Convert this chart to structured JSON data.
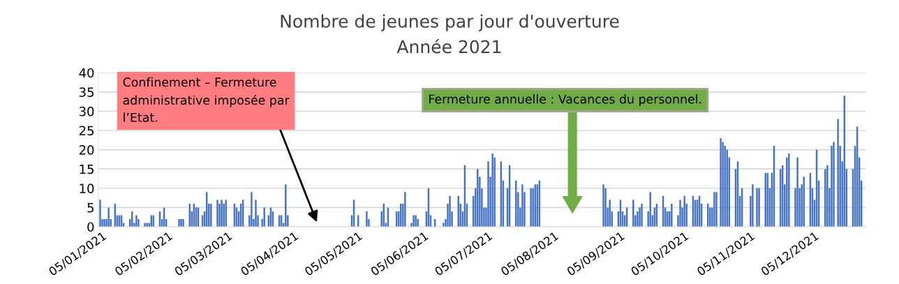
{
  "chart_data": {
    "type": "bar",
    "title": "Nombre de jeunes par jour d'ouverture",
    "subtitle": "Année 2021",
    "x": [
      "2021-01-04",
      "2021-01-05",
      "2021-01-06",
      "2021-01-07",
      "2021-01-08",
      "2021-01-09",
      "2021-01-11",
      "2021-01-12",
      "2021-01-13",
      "2021-01-14",
      "2021-01-15",
      "2021-01-18",
      "2021-01-19",
      "2021-01-20",
      "2021-01-21",
      "2021-01-22",
      "2021-01-25",
      "2021-01-26",
      "2021-01-27",
      "2021-01-28",
      "2021-01-29",
      "2021-02-01",
      "2021-02-02",
      "2021-02-03",
      "2021-02-04",
      "2021-02-10",
      "2021-02-11",
      "2021-02-12",
      "2021-02-15",
      "2021-02-16",
      "2021-02-17",
      "2021-02-18",
      "2021-02-19",
      "2021-02-21",
      "2021-02-22",
      "2021-02-23",
      "2021-02-24",
      "2021-02-25",
      "2021-02-28",
      "2021-03-01",
      "2021-03-02",
      "2021-03-03",
      "2021-03-04",
      "2021-03-08",
      "2021-03-09",
      "2021-03-10",
      "2021-03-11",
      "2021-03-12",
      "2021-03-15",
      "2021-03-16",
      "2021-03-17",
      "2021-03-18",
      "2021-03-19",
      "2021-03-21",
      "2021-03-22",
      "2021-03-24",
      "2021-03-25",
      "2021-03-26",
      "2021-03-29",
      "2021-03-30",
      "2021-03-31",
      "2021-04-01",
      "2021-04-02",
      "2021-05-02",
      "2021-05-03",
      "2021-05-05",
      "2021-05-09",
      "2021-05-10",
      "2021-05-16",
      "2021-05-17",
      "2021-05-18",
      "2021-05-19",
      "2021-05-23",
      "2021-05-24",
      "2021-05-25",
      "2021-05-26",
      "2021-05-27",
      "2021-05-30",
      "2021-05-31",
      "2021-06-01",
      "2021-06-02",
      "2021-06-06",
      "2021-06-07",
      "2021-06-08",
      "2021-06-10",
      "2021-06-14",
      "2021-06-15",
      "2021-06-16",
      "2021-06-17",
      "2021-06-18",
      "2021-06-21",
      "2021-06-22",
      "2021-06-23",
      "2021-06-24",
      "2021-06-25",
      "2021-06-28",
      "2021-06-29",
      "2021-06-30",
      "2021-07-01",
      "2021-07-02",
      "2021-07-03",
      "2021-07-04",
      "2021-07-05",
      "2021-07-06",
      "2021-07-07",
      "2021-07-08",
      "2021-07-11",
      "2021-07-12",
      "2021-07-14",
      "2021-07-15",
      "2021-07-18",
      "2021-07-19",
      "2021-07-20",
      "2021-07-21",
      "2021-07-22",
      "2021-07-25",
      "2021-07-26",
      "2021-07-27",
      "2021-07-28",
      "2021-07-29",
      "2021-08-28",
      "2021-08-29",
      "2021-08-30",
      "2021-08-31",
      "2021-09-01",
      "2021-09-04",
      "2021-09-05",
      "2021-09-06",
      "2021-09-07",
      "2021-09-08",
      "2021-09-11",
      "2021-09-12",
      "2021-09-13",
      "2021-09-14",
      "2021-09-15",
      "2021-09-18",
      "2021-09-19",
      "2021-09-20",
      "2021-09-21",
      "2021-09-22",
      "2021-09-25",
      "2021-09-26",
      "2021-09-27",
      "2021-09-28",
      "2021-09-29",
      "2021-10-02",
      "2021-10-03",
      "2021-10-04",
      "2021-10-05",
      "2021-10-06",
      "2021-10-09",
      "2021-10-10",
      "2021-10-11",
      "2021-10-12",
      "2021-10-13",
      "2021-10-16",
      "2021-10-17",
      "2021-10-18",
      "2021-10-19",
      "2021-10-20",
      "2021-10-22",
      "2021-10-23",
      "2021-10-24",
      "2021-10-25",
      "2021-10-26",
      "2021-10-29",
      "2021-10-30",
      "2021-10-31",
      "2021-11-01",
      "2021-11-05",
      "2021-11-06",
      "2021-11-08",
      "2021-11-09",
      "2021-11-12",
      "2021-11-13",
      "2021-11-14",
      "2021-11-15",
      "2021-11-16",
      "2021-11-19",
      "2021-11-20",
      "2021-11-21",
      "2021-11-22",
      "2021-11-23",
      "2021-11-26",
      "2021-11-27",
      "2021-11-28",
      "2021-11-29",
      "2021-11-30",
      "2021-12-03",
      "2021-12-04",
      "2021-12-05",
      "2021-12-06",
      "2021-12-07",
      "2021-12-10",
      "2021-12-11",
      "2021-12-12",
      "2021-12-13",
      "2021-12-14",
      "2021-12-16",
      "2021-12-17",
      "2021-12-18",
      "2021-12-19",
      "2021-12-20",
      "2021-12-23",
      "2021-12-24",
      "2021-12-25",
      "2021-12-26",
      "2021-12-27"
    ],
    "values": [
      7,
      2,
      2,
      2,
      5,
      2,
      6,
      3,
      3,
      3,
      1,
      2,
      4,
      1,
      3,
      2,
      1,
      1,
      1,
      3,
      3,
      4,
      2,
      5,
      2,
      2,
      2,
      2,
      6,
      4,
      6,
      5,
      5,
      3,
      4,
      9,
      6,
      6,
      7,
      6,
      7,
      6,
      7,
      6,
      5,
      4,
      6,
      7,
      3,
      9,
      2,
      7,
      3,
      2,
      5,
      3,
      5,
      4,
      3,
      3,
      1,
      11,
      3,
      3,
      7,
      3,
      4,
      2,
      4,
      6,
      1,
      5,
      4,
      4,
      6,
      6,
      9,
      1,
      3,
      3,
      2,
      4,
      10,
      3,
      2,
      1,
      2,
      6,
      8,
      4,
      8,
      6,
      4,
      16,
      6,
      8,
      10,
      15,
      13,
      10,
      5,
      5,
      17,
      13,
      19,
      18,
      17,
      12,
      10,
      16,
      12,
      9,
      5,
      11,
      9,
      10,
      10,
      11,
      11,
      12,
      11,
      10,
      5,
      7,
      4,
      4,
      7,
      4,
      3,
      5,
      7,
      3,
      4,
      5,
      6,
      4,
      9,
      3,
      5,
      6,
      8,
      5,
      4,
      4,
      6,
      3,
      7,
      5,
      8,
      6,
      8,
      7,
      7,
      8,
      6,
      6,
      5,
      5,
      9,
      9,
      23,
      22,
      21,
      20,
      18,
      15,
      17,
      8,
      10,
      8,
      11,
      10,
      10,
      14,
      14,
      10,
      14,
      21,
      15,
      16,
      11,
      18,
      19,
      10,
      18,
      10,
      11,
      13,
      14,
      10,
      7,
      20,
      12,
      15,
      16,
      10,
      21,
      22,
      28,
      21,
      17,
      34,
      15,
      15,
      21,
      26,
      18,
      12
    ],
    "color": "#4472c4",
    "xlim": [
      "2021-01-03",
      "2021-12-29"
    ],
    "xticks": [
      {
        "value": "2021-01-05",
        "label": "05/01/2021"
      },
      {
        "value": "2021-02-05",
        "label": "05/02/2021"
      },
      {
        "value": "2021-03-05",
        "label": "05/03/2021"
      },
      {
        "value": "2021-04-05",
        "label": "05/04/2021"
      },
      {
        "value": "2021-05-05",
        "label": "05/05/2021"
      },
      {
        "value": "2021-06-05",
        "label": "05/06/2021"
      },
      {
        "value": "2021-07-05",
        "label": "05/07/2021"
      },
      {
        "value": "2021-08-05",
        "label": "05/08/2021"
      },
      {
        "value": "2021-09-05",
        "label": "05/09/2021"
      },
      {
        "value": "2021-10-05",
        "label": "05/10/2021"
      },
      {
        "value": "2021-11-05",
        "label": "05/11/2021"
      },
      {
        "value": "2021-12-05",
        "label": "05/12/2021"
      }
    ],
    "ylim": [
      0,
      40
    ],
    "yticks": [
      0,
      5,
      10,
      15,
      20,
      25,
      30,
      35,
      40
    ],
    "grid": "y",
    "annotations": [
      "Confinement – Fermeture administrative imposée par l’Etat.",
      "Fermeture annuelle : Vacances du personnel."
    ]
  }
}
